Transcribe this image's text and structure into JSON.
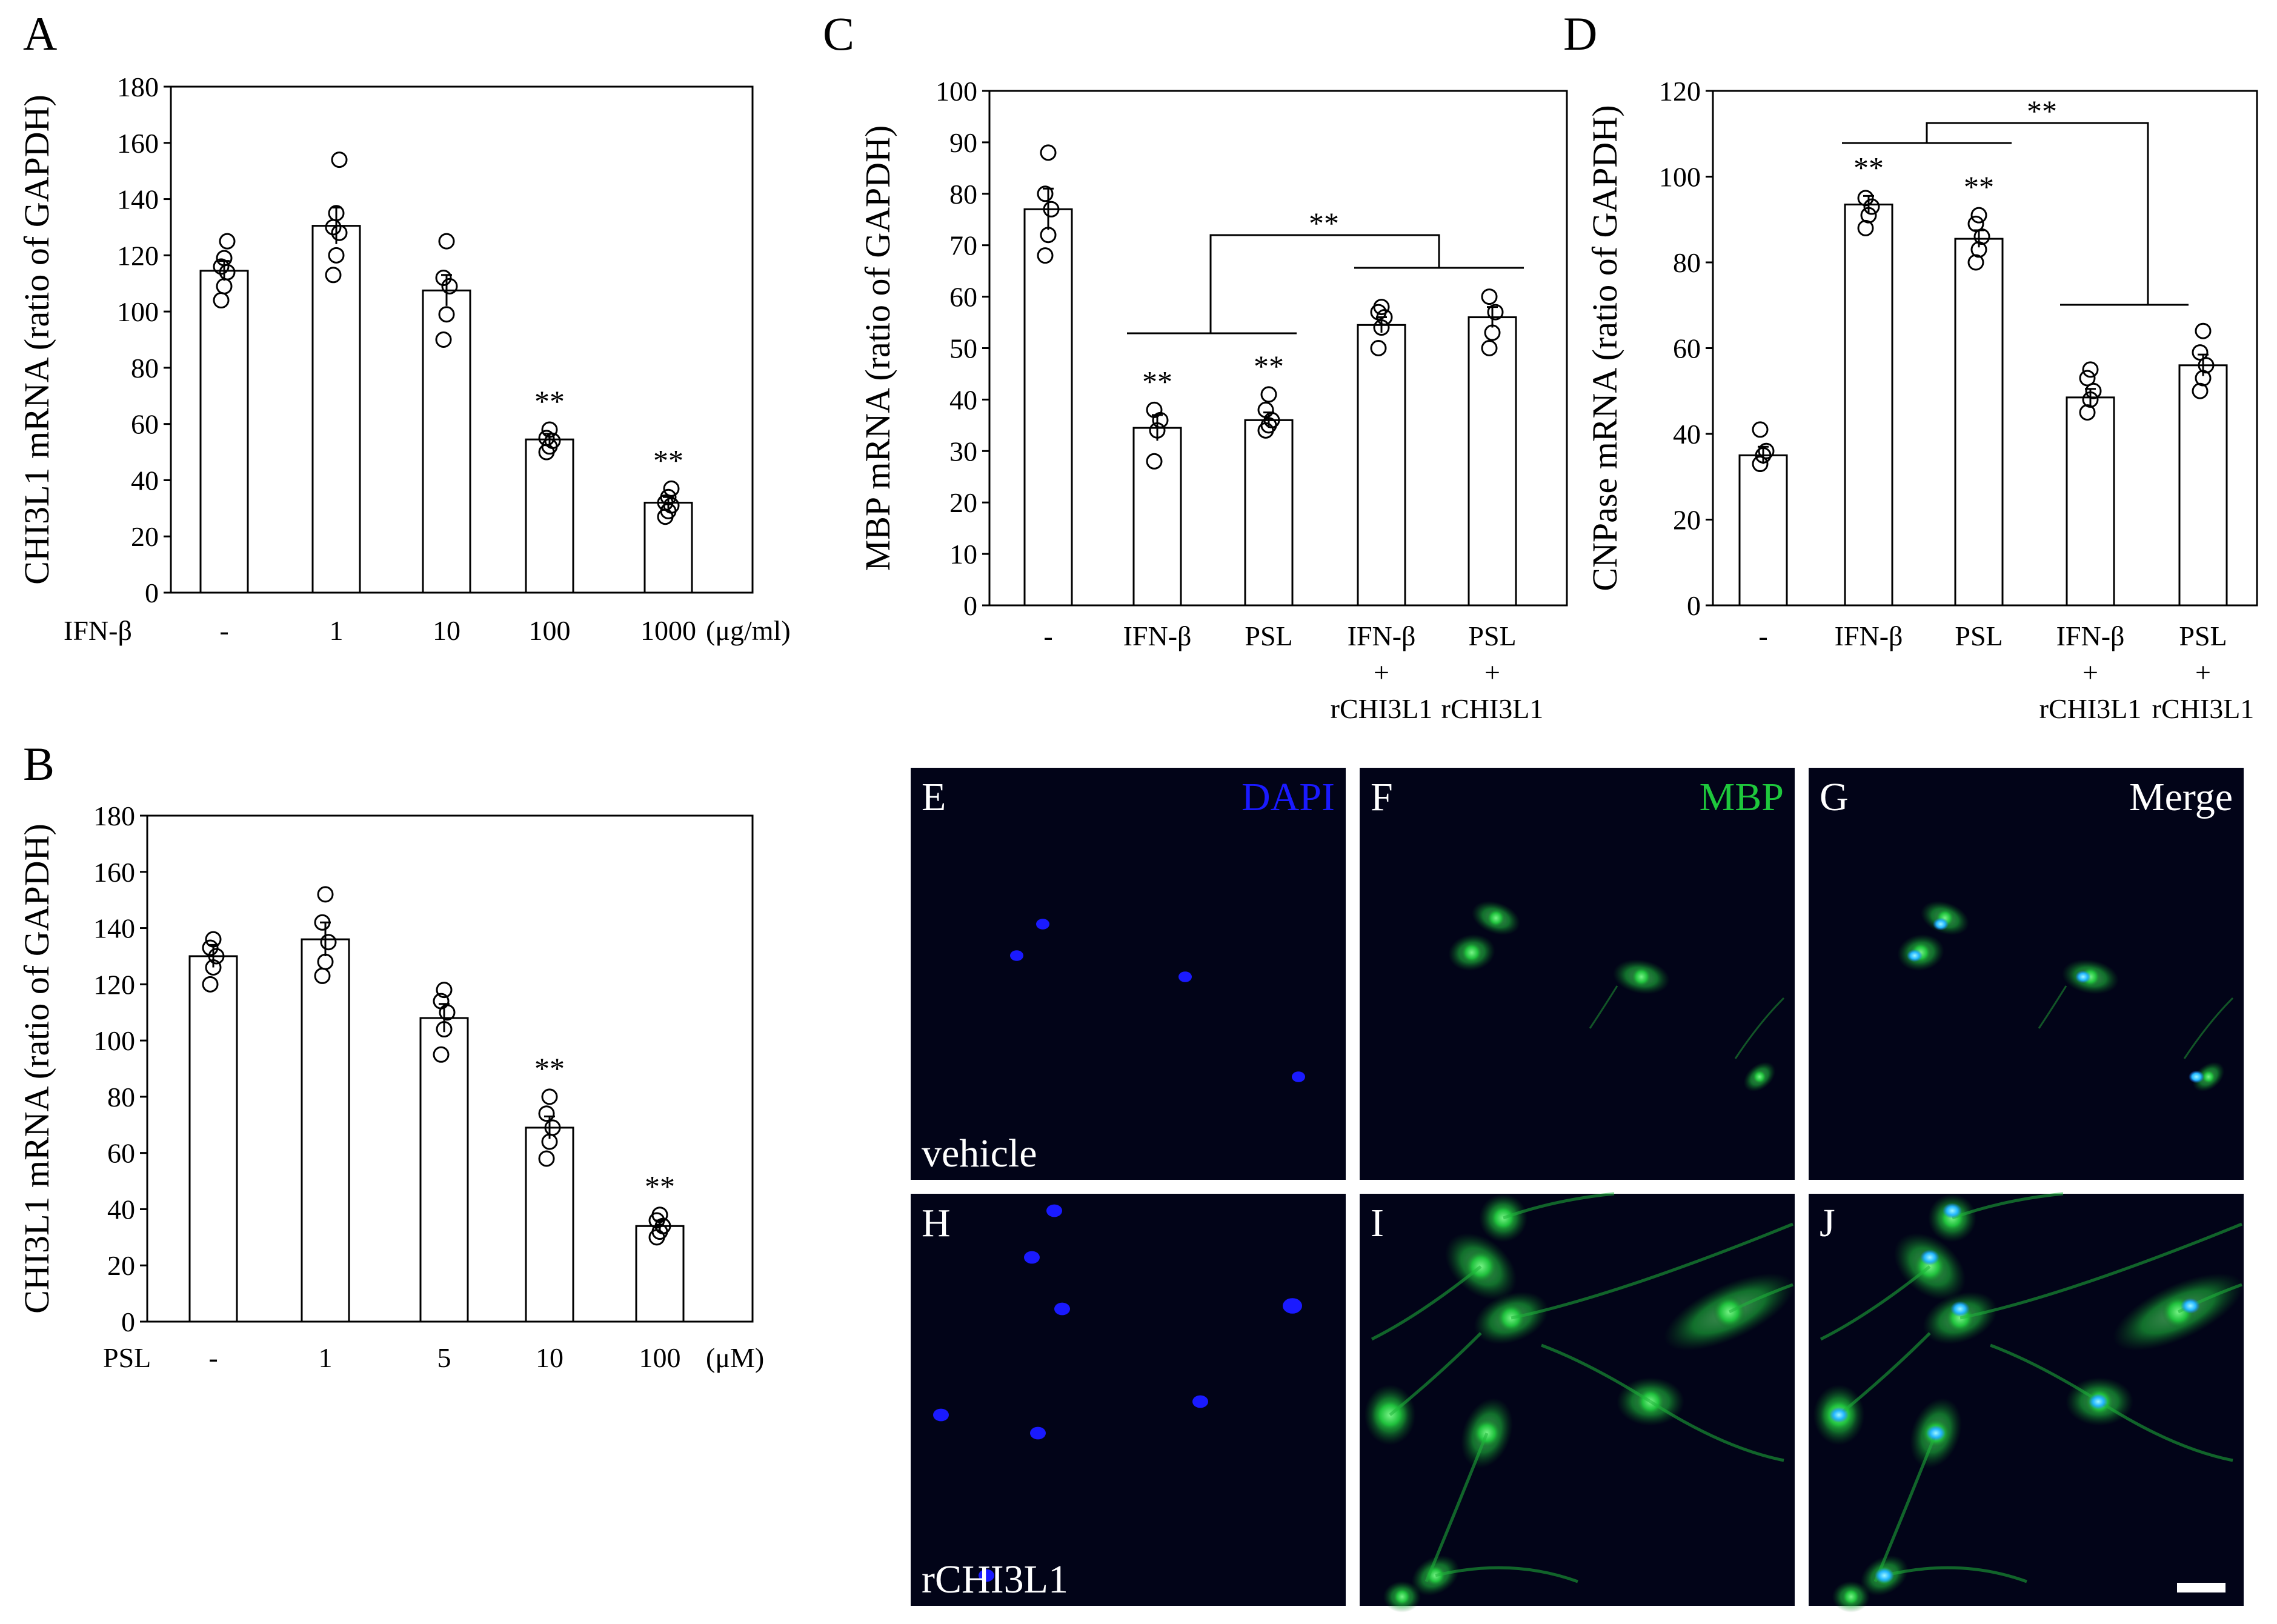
{
  "colors": {
    "dapi": "#1a1aff",
    "mbp": "#1ec83c",
    "merge_label": "#ffffff",
    "micro_bg": "#020418"
  },
  "chart_data": [
    {
      "type": "bar",
      "panel": "A",
      "ylabel": "CHI3L1 mRNA (ratio of GAPDH)",
      "treatment": "IFN-β",
      "unit": "(μg/ml)",
      "categories": [
        "-",
        "1",
        "10",
        "100",
        "1000"
      ],
      "values": [
        114.5,
        130.5,
        107.5,
        54.5,
        32
      ],
      "sem": [
        3.5,
        6.5,
        5.5,
        2,
        2
      ],
      "points": [
        [
          104,
          109,
          114,
          116,
          119,
          125
        ],
        [
          113,
          120,
          128,
          130,
          135,
          154
        ],
        [
          90,
          99,
          109,
          112,
          125
        ],
        [
          50,
          52,
          54,
          55,
          58
        ],
        [
          27,
          29,
          31,
          32,
          34,
          37
        ]
      ],
      "significance": [
        "",
        "",
        "",
        "**",
        "**"
      ],
      "ylim": [
        0,
        180
      ],
      "yticks": [
        0,
        20,
        40,
        60,
        80,
        100,
        120,
        140,
        160,
        180
      ]
    },
    {
      "type": "bar",
      "panel": "B",
      "ylabel": "CHI3L1 mRNA (ratio of GAPDH)",
      "treatment": "PSL",
      "unit": "(μM)",
      "categories": [
        "-",
        "1",
        "5",
        "10",
        "100"
      ],
      "values": [
        130,
        136,
        108,
        69,
        34
      ],
      "sem": [
        4,
        6,
        5,
        4,
        2
      ],
      "points": [
        [
          120,
          126,
          130,
          133,
          136
        ],
        [
          123,
          128,
          135,
          142,
          152
        ],
        [
          95,
          104,
          110,
          114,
          118
        ],
        [
          58,
          64,
          69,
          74,
          80
        ],
        [
          30,
          32,
          34,
          36,
          38
        ]
      ],
      "significance": [
        "",
        "",
        "",
        "**",
        "**"
      ],
      "ylim": [
        0,
        180
      ],
      "yticks": [
        0,
        20,
        40,
        60,
        80,
        100,
        120,
        140,
        160,
        180
      ]
    },
    {
      "type": "bar",
      "panel": "C",
      "ylabel": "MBP mRNA (ratio of GAPDH)",
      "categories": [
        [
          "-"
        ],
        [
          "IFN-β"
        ],
        [
          "PSL"
        ],
        [
          "IFN-β",
          "+",
          "rCHI3L1"
        ],
        [
          "PSL",
          "+",
          "rCHI3L1"
        ]
      ],
      "values": [
        77,
        34.5,
        36,
        54.5,
        56
      ],
      "sem": [
        4,
        2.5,
        1.5,
        1.5,
        2
      ],
      "points": [
        [
          68,
          72,
          77,
          80,
          88
        ],
        [
          28,
          34,
          36,
          38
        ],
        [
          34,
          35,
          36,
          38,
          41
        ],
        [
          50,
          54,
          56,
          57,
          58
        ],
        [
          50,
          53,
          57,
          60
        ]
      ],
      "significance": [
        "",
        "**",
        "**",
        "",
        ""
      ],
      "comparison_label": "**",
      "ylim": [
        0,
        100
      ],
      "yticks": [
        0,
        10,
        20,
        30,
        40,
        50,
        60,
        70,
        80,
        90,
        100
      ]
    },
    {
      "type": "bar",
      "panel": "D",
      "ylabel": "CNPase mRNA (ratio of GAPDH)",
      "categories": [
        [
          "-"
        ],
        [
          "IFN-β"
        ],
        [
          "PSL"
        ],
        [
          "IFN-β",
          "+",
          "rCHI3L1"
        ],
        [
          "PSL",
          "+",
          "rCHI3L1"
        ]
      ],
      "values": [
        35,
        93.5,
        85.5,
        48.5,
        56
      ],
      "sem": [
        2,
        2,
        2,
        2,
        2.5
      ],
      "points": [
        [
          33,
          35,
          36,
          41
        ],
        [
          88,
          91,
          93,
          95
        ],
        [
          80,
          83,
          86,
          89,
          91
        ],
        [
          45,
          48,
          50,
          53,
          55
        ],
        [
          50,
          53,
          56,
          59,
          64
        ]
      ],
      "significance": [
        "",
        "**",
        "**",
        "",
        ""
      ],
      "comparison_label": "**",
      "ylim": [
        0,
        120
      ],
      "yticks": [
        0,
        20,
        40,
        60,
        80,
        100,
        120
      ]
    }
  ],
  "micrographs": {
    "rows": [
      "vehicle",
      "rCHI3L1"
    ],
    "channels": [
      "DAPI",
      "MBP",
      "Merge"
    ],
    "panel_letters": [
      [
        "E",
        "F",
        "G"
      ],
      [
        "H",
        "I",
        "J"
      ]
    ]
  }
}
